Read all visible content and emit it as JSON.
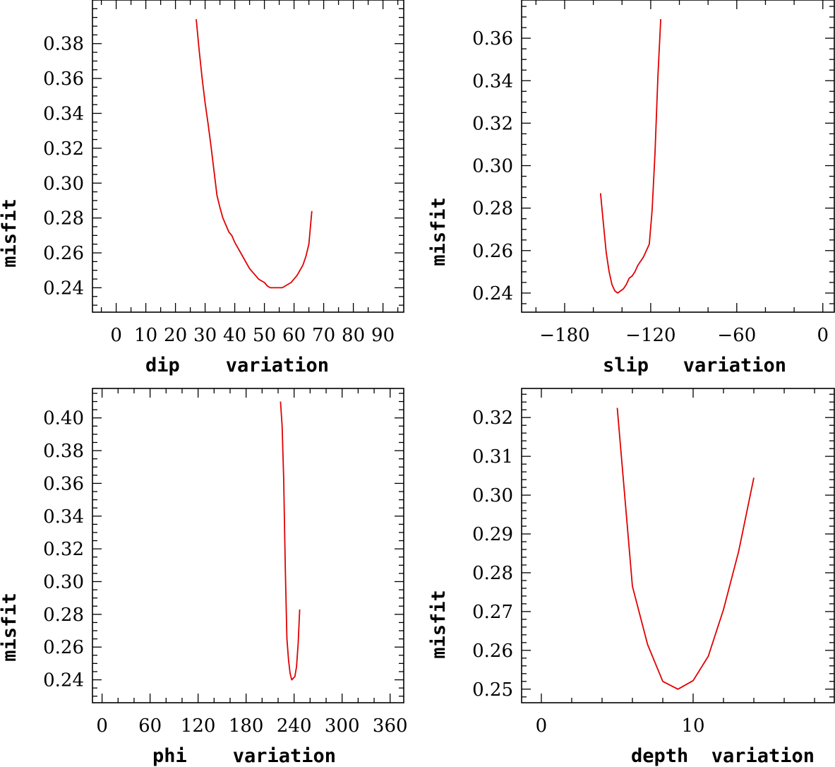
{
  "chart_data": [
    {
      "type": "line",
      "xlabel": "dip    variation",
      "ylabel": "misfit",
      "xlim": [
        -8,
        97
      ],
      "ylim": [
        0.226,
        0.405
      ],
      "xticks": [
        0,
        10,
        20,
        30,
        40,
        50,
        60,
        70,
        80,
        90
      ],
      "yticks": [
        0.24,
        0.26,
        0.28,
        0.3,
        0.32,
        0.34,
        0.36,
        0.38
      ],
      "ytick_labels": [
        "0.24",
        "0.26",
        "0.28",
        "0.30",
        "0.32",
        "0.34",
        "0.36",
        "0.38"
      ],
      "series": [
        {
          "name": "misfit",
          "color": "#e00000",
          "x": [
            27,
            28,
            29,
            30,
            31,
            32,
            33,
            34,
            35,
            36,
            37,
            38,
            39,
            40,
            41,
            42,
            43,
            44,
            45,
            46,
            47,
            48,
            49,
            50,
            51,
            52,
            53,
            54,
            55,
            56,
            57,
            58,
            59,
            60,
            61,
            62,
            63,
            64,
            65,
            66
          ],
          "y": [
            0.394,
            0.376,
            0.36,
            0.346,
            0.334,
            0.321,
            0.307,
            0.293,
            0.286,
            0.28,
            0.276,
            0.272,
            0.27,
            0.266,
            0.263,
            0.26,
            0.257,
            0.254,
            0.251,
            0.249,
            0.247,
            0.245,
            0.244,
            0.243,
            0.241,
            0.24,
            0.24,
            0.24,
            0.24,
            0.24,
            0.241,
            0.242,
            0.243,
            0.245,
            0.247,
            0.25,
            0.253,
            0.258,
            0.265,
            0.284
          ]
        }
      ]
    },
    {
      "type": "line",
      "xlabel": "slip   variation",
      "ylabel": "misfit",
      "xlim": [
        -210,
        8
      ],
      "ylim": [
        0.231,
        0.378
      ],
      "xticks": [
        -180,
        -120,
        -60,
        0
      ],
      "xtick_labels": [
        "−180",
        "−120",
        "−60",
        "0"
      ],
      "yticks": [
        0.24,
        0.26,
        0.28,
        0.3,
        0.32,
        0.34,
        0.36
      ],
      "ytick_labels": [
        "0.24",
        "0.26",
        "0.28",
        "0.30",
        "0.32",
        "0.34",
        "0.36"
      ],
      "series": [
        {
          "name": "misfit",
          "color": "#e00000",
          "x": [
            -155,
            -153,
            -151,
            -149,
            -147,
            -145,
            -143,
            -141,
            -139,
            -137,
            -135,
            -133,
            -131,
            -129,
            -127,
            -125,
            -123,
            -121,
            -119,
            -117,
            -115,
            -113
          ],
          "y": [
            0.287,
            0.273,
            0.259,
            0.25,
            0.244,
            0.241,
            0.24,
            0.241,
            0.242,
            0.244,
            0.247,
            0.248,
            0.25,
            0.253,
            0.255,
            0.257,
            0.26,
            0.263,
            0.279,
            0.306,
            0.342,
            0.369
          ]
        }
      ]
    },
    {
      "type": "line",
      "xlabel": "phi    variation",
      "ylabel": "misfit",
      "xlim": [
        -12,
        377
      ],
      "ylim": [
        0.226,
        0.418
      ],
      "xticks": [
        0,
        60,
        120,
        180,
        240,
        300,
        360
      ],
      "yticks": [
        0.24,
        0.26,
        0.28,
        0.3,
        0.32,
        0.34,
        0.36,
        0.38,
        0.4
      ],
      "ytick_labels": [
        "0.24",
        "0.26",
        "0.28",
        "0.30",
        "0.32",
        "0.34",
        "0.36",
        "0.38",
        "0.40"
      ],
      "series": [
        {
          "name": "misfit",
          "color": "#e00000",
          "x": [
            223,
            225,
            227,
            229,
            231,
            233,
            235,
            237,
            239,
            241,
            243,
            245,
            247
          ],
          "y": [
            0.41,
            0.395,
            0.363,
            0.308,
            0.265,
            0.252,
            0.244,
            0.24,
            0.241,
            0.242,
            0.248,
            0.262,
            0.283
          ]
        }
      ]
    },
    {
      "type": "line",
      "xlabel": "depth  variation",
      "ylabel": "misfit",
      "xlim": [
        -1.3,
        19.3
      ],
      "ylim": [
        0.2465,
        0.3275
      ],
      "xticks": [
        0,
        10
      ],
      "yticks": [
        0.25,
        0.26,
        0.27,
        0.28,
        0.29,
        0.3,
        0.31,
        0.32
      ],
      "ytick_labels": [
        "0.25",
        "0.26",
        "0.27",
        "0.28",
        "0.29",
        "0.30",
        "0.31",
        "0.32"
      ],
      "series": [
        {
          "name": "misfit",
          "color": "#e00000",
          "x": [
            5,
            6,
            7,
            8,
            9,
            10,
            11,
            12,
            13,
            14
          ],
          "y": [
            0.3225,
            0.2765,
            0.2615,
            0.252,
            0.25,
            0.2522,
            0.2585,
            0.2705,
            0.2855,
            0.3045
          ]
        }
      ]
    }
  ]
}
